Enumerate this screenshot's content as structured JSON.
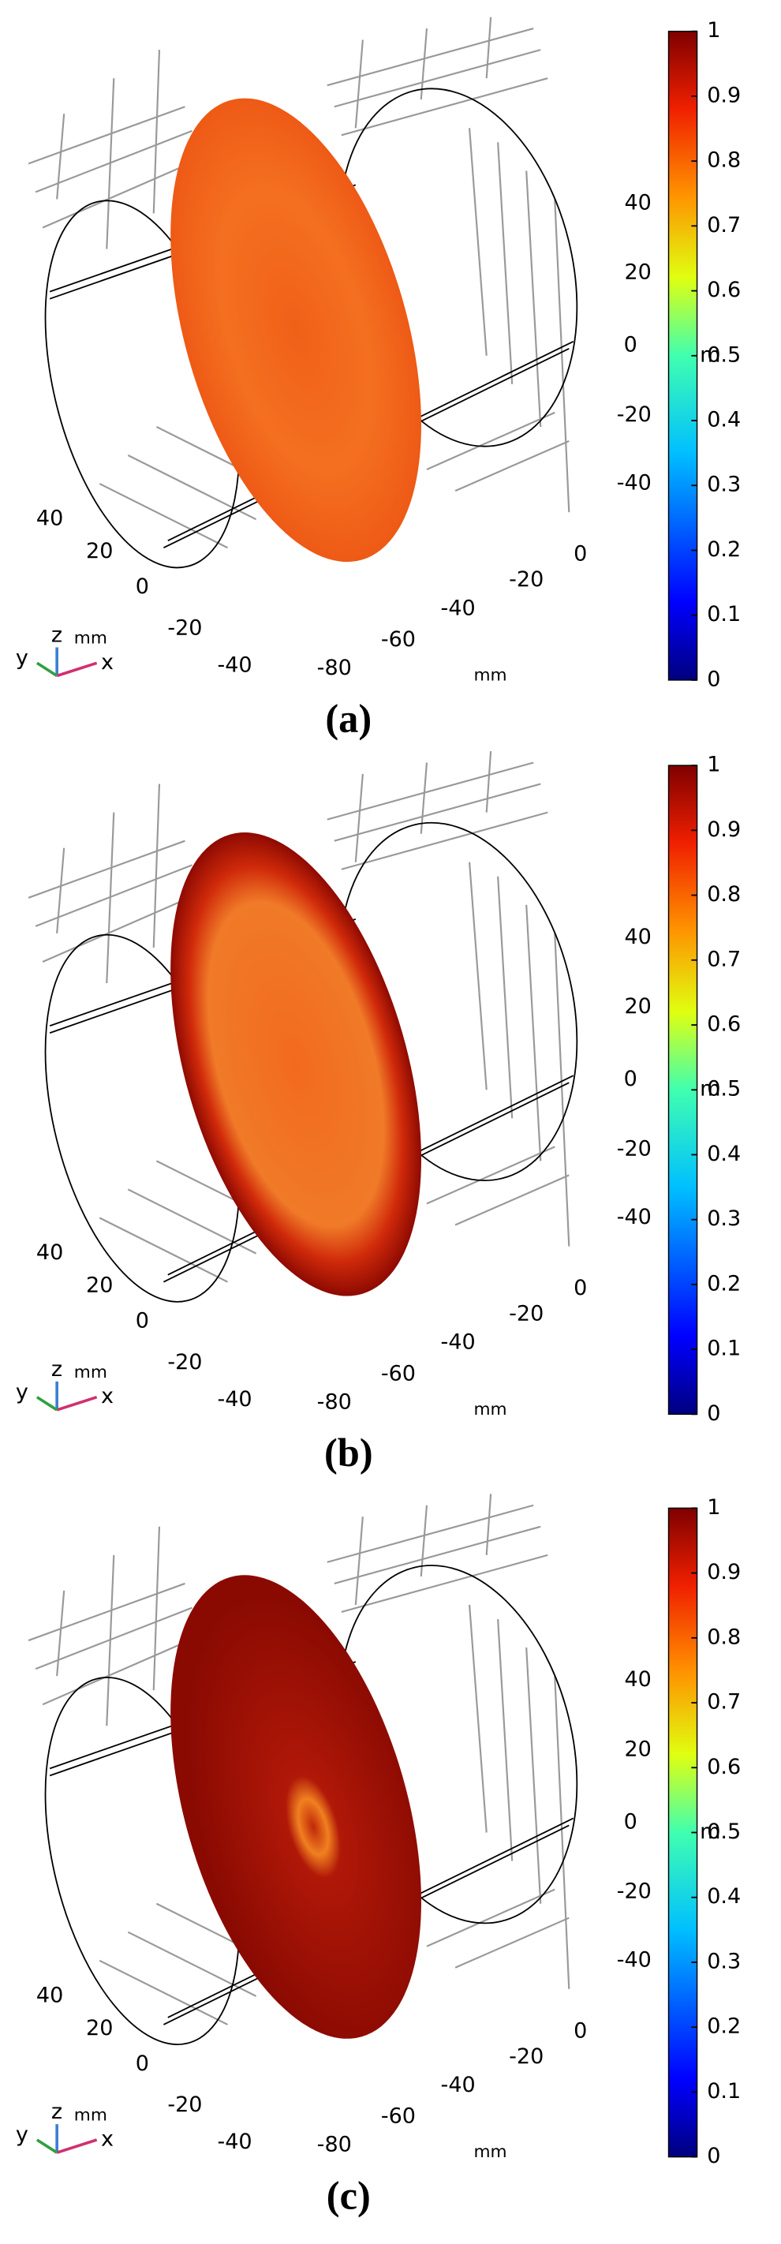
{
  "panels": [
    {
      "caption": "(a)",
      "disk": "uniform",
      "colorbar": {
        "ticks": [
          1,
          0.9,
          0.8,
          0.7,
          0.6,
          0.5,
          0.4,
          0.3,
          0.2,
          0.1,
          0
        ],
        "label": "m"
      },
      "z_ticks": [
        40,
        20,
        0,
        -20,
        -40
      ],
      "y_ticks": [
        40,
        20,
        0,
        -20,
        -40
      ],
      "x_ticks": [
        -80,
        -60,
        -40,
        -20,
        0
      ],
      "axis_unit": "mm",
      "triad": {
        "z": "z",
        "unit": "mm",
        "y": "y",
        "x": "x"
      }
    },
    {
      "caption": "(b)",
      "disk": "rim",
      "colorbar": {
        "ticks": [
          1,
          0.9,
          0.8,
          0.7,
          0.6,
          0.5,
          0.4,
          0.3,
          0.2,
          0.1,
          0
        ],
        "label": "m"
      },
      "z_ticks": [
        40,
        20,
        0,
        -20,
        -40
      ],
      "y_ticks": [
        40,
        20,
        0,
        -20,
        -40
      ],
      "x_ticks": [
        -80,
        -60,
        -40,
        -20,
        0
      ],
      "axis_unit": "mm",
      "triad": {
        "z": "z",
        "unit": "mm",
        "y": "y",
        "x": "x"
      }
    },
    {
      "caption": "(c)",
      "disk": "saturated",
      "colorbar": {
        "ticks": [
          1,
          0.9,
          0.8,
          0.7,
          0.6,
          0.5,
          0.4,
          0.3,
          0.2,
          0.1,
          0
        ],
        "label": "m"
      },
      "z_ticks": [
        40,
        20,
        0,
        -20,
        -40
      ],
      "y_ticks": [
        40,
        20,
        0,
        -20,
        -40
      ],
      "x_ticks": [
        -80,
        -60,
        -40,
        -20,
        0
      ],
      "axis_unit": "mm",
      "triad": {
        "z": "z",
        "unit": "mm",
        "y": "y",
        "x": "x"
      }
    }
  ]
}
